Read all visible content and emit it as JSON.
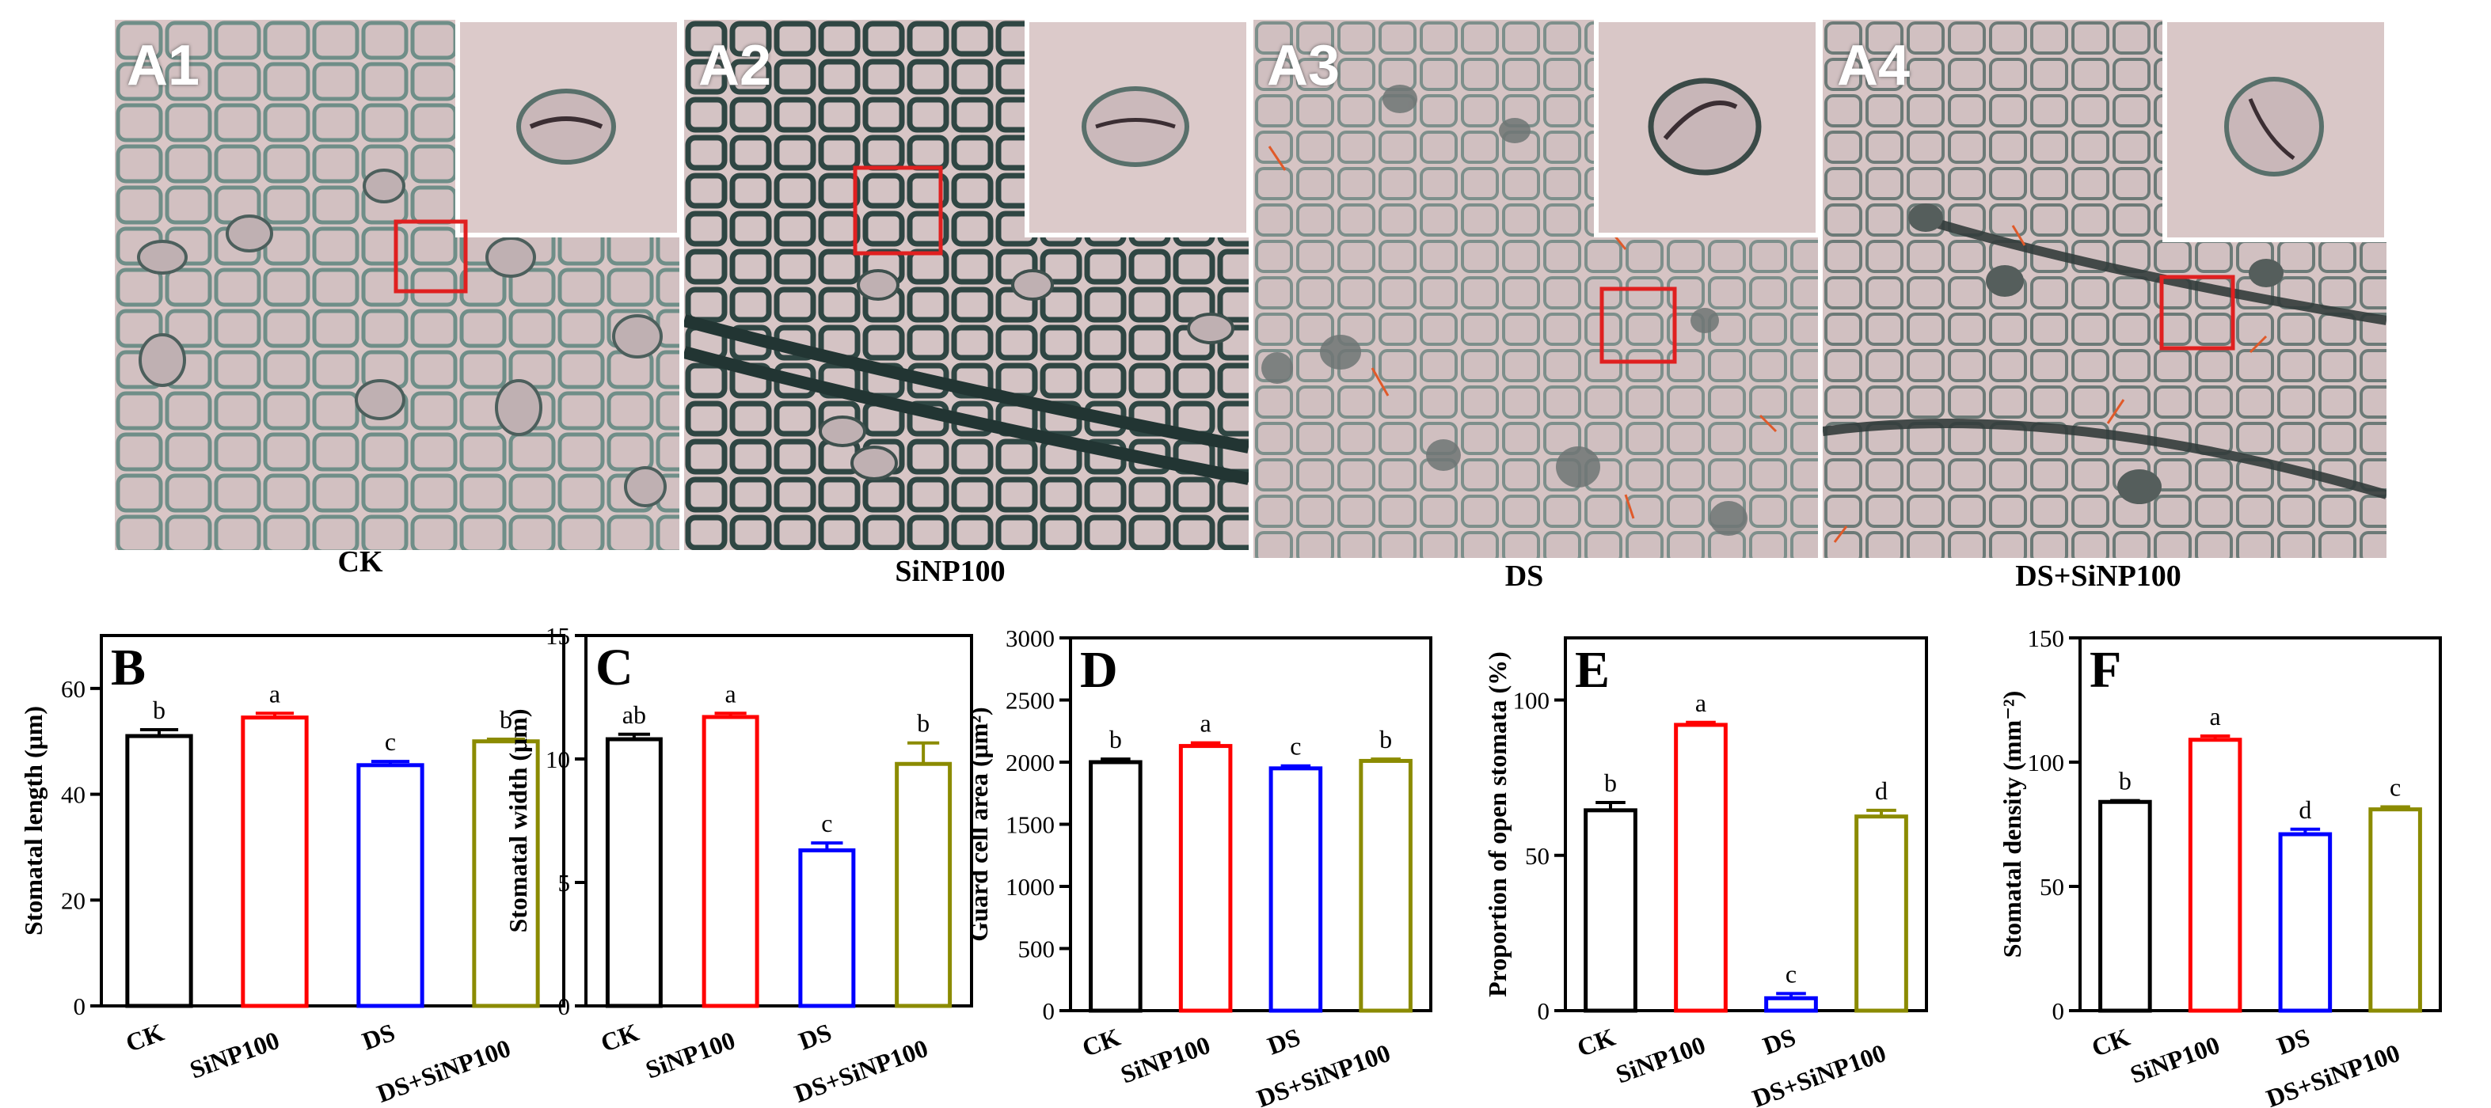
{
  "panels": [
    {
      "label": "A1",
      "caption": "CK"
    },
    {
      "label": "A2",
      "caption": "SiNP100"
    },
    {
      "label": "A3",
      "caption": "DS"
    },
    {
      "label": "A4",
      "caption": "DS+SiNP100"
    }
  ],
  "colors": {
    "CK": "#000000",
    "SiNP100": "#ff0000",
    "DS": "#0000ff",
    "DS+SiNP100": "#8b8b00",
    "tissue_bg": "#d8c7c7",
    "cell_wall": "#5e7d77",
    "zoom_box": "#e02020",
    "arrow": "#e05a2a"
  },
  "chart_data": [
    {
      "type": "bar",
      "panel": "B",
      "categories": [
        "CK",
        "SiNP100",
        "DS",
        "DS+SiNP100"
      ],
      "values": [
        51,
        54.5,
        45.5,
        50
      ],
      "errors": [
        1.2,
        0.8,
        0.7,
        0.4
      ],
      "letters": [
        "b",
        "a",
        "c",
        "b"
      ],
      "ylabel": "Stomatal length (μm)",
      "ylim": [
        0,
        70
      ],
      "yticks": [
        0,
        20,
        40,
        60
      ]
    },
    {
      "type": "bar",
      "panel": "C",
      "categories": [
        "CK",
        "SiNP100",
        "DS",
        "DS+SiNP100"
      ],
      "values": [
        10.8,
        11.7,
        6.3,
        9.8
      ],
      "errors": [
        0.2,
        0.15,
        0.3,
        0.85
      ],
      "letters": [
        "ab",
        "a",
        "c",
        "b"
      ],
      "ylabel": "Stomatal width (μm)",
      "ylim": [
        0,
        15
      ],
      "yticks": [
        0,
        5,
        10,
        15
      ]
    },
    {
      "type": "bar",
      "panel": "D",
      "categories": [
        "CK",
        "SiNP100",
        "DS",
        "DS+SiNP100"
      ],
      "values": [
        2000,
        2130,
        1950,
        2010
      ],
      "errors": [
        25,
        25,
        20,
        15
      ],
      "letters": [
        "b",
        "a",
        "c",
        "b"
      ],
      "ylabel": "Guard cell area (μm²)",
      "ylim": [
        0,
        3000
      ],
      "yticks": [
        0,
        500,
        1000,
        1500,
        2000,
        2500,
        3000
      ]
    },
    {
      "type": "bar",
      "panel": "E",
      "categories": [
        "CK",
        "SiNP100",
        "DS",
        "DS+SiNP100"
      ],
      "values": [
        64.5,
        92,
        4,
        62.5
      ],
      "errors": [
        2.5,
        0.8,
        1.5,
        2
      ],
      "letters": [
        "b",
        "a",
        "c",
        "d"
      ],
      "ylabel": "Proportion of open stomata (%)",
      "ylim": [
        0,
        120
      ],
      "yticks": [
        0,
        50,
        100
      ]
    },
    {
      "type": "bar",
      "panel": "F",
      "categories": [
        "CK",
        "SiNP100",
        "DS",
        "DS+SiNP100"
      ],
      "values": [
        84,
        109,
        71,
        81
      ],
      "errors": [
        0.5,
        1.5,
        2,
        1
      ],
      "letters": [
        "b",
        "a",
        "d",
        "c"
      ],
      "ylabel": "Stomatal density (mm⁻²)",
      "ylim": [
        0,
        150
      ],
      "yticks": [
        0,
        50,
        100,
        150
      ]
    }
  ]
}
